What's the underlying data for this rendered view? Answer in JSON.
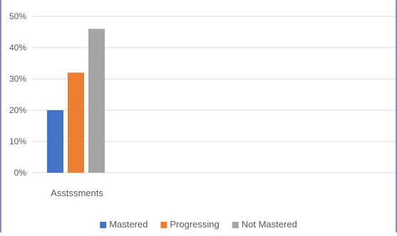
{
  "chart_data": {
    "type": "bar",
    "categories": [
      "Asstssments"
    ],
    "series": [
      {
        "name": "Mastered",
        "values": [
          20
        ],
        "color": "#4472c4"
      },
      {
        "name": "Progressing",
        "values": [
          32
        ],
        "color": "#ed7d31"
      },
      {
        "name": "Not Mastered",
        "values": [
          46
        ],
        "color": "#a5a5a5"
      }
    ],
    "ylim": [
      0,
      50
    ],
    "yticks": [
      "0%",
      "10%",
      "20%",
      "30%",
      "40%",
      "50%"
    ],
    "ytick_values": [
      0,
      10,
      20,
      30,
      40,
      50
    ],
    "grid": true,
    "legend_position": "bottom",
    "colors": {
      "grid": "#d9d9d9",
      "text": "#595959",
      "edge": "#8a8ac0"
    }
  }
}
